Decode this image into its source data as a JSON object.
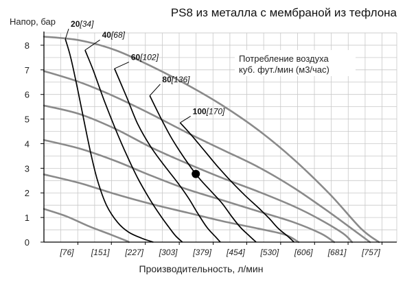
{
  "chart_data": {
    "type": "line",
    "title": "PS8 из металла с мембраной из тефлона",
    "ylabel": "Напор, бар",
    "xlabel": "Производительность, л/мин",
    "legend_text_1": "Потребление воздуха",
    "legend_text_2": "куб. фут./мин (м3/час)",
    "x_tick_labels": [
      "[76]",
      "[151]",
      "[227]",
      "[303]",
      "[379]",
      "[454]",
      "[530]",
      "[606]",
      "[681]",
      "[757]"
    ],
    "x_ticks": [
      76,
      151,
      227,
      303,
      379,
      454,
      530,
      606,
      681,
      757
    ],
    "y_ticks": [
      0,
      1,
      2,
      3,
      4,
      5,
      6,
      7,
      8
    ],
    "y_tick_labels": [
      "0",
      "1",
      "2",
      "3",
      "4",
      "5",
      "6",
      "7",
      "8"
    ],
    "xlim": [
      0,
      790
    ],
    "ylim": [
      0,
      8.5
    ],
    "grid": true,
    "operating_point": {
      "x": 340,
      "y": 2.77
    },
    "air_curves": [
      {
        "label_main": "20",
        "label_sub": "[34]",
        "label_at": {
          "x": 60,
          "y": 8.75
        },
        "points": [
          [
            48,
            8.25
          ],
          [
            60,
            7.5
          ],
          [
            75,
            6.25
          ],
          [
            90,
            4.9
          ],
          [
            105,
            3.6
          ],
          [
            120,
            2.5
          ],
          [
            140,
            1.5
          ],
          [
            165,
            0.8
          ],
          [
            190,
            0.4
          ],
          [
            220,
            0.15
          ],
          [
            245,
            0.0
          ]
        ]
      },
      {
        "label_main": "40",
        "label_sub": "[68]",
        "label_at": {
          "x": 130,
          "y": 8.3
        },
        "points": [
          [
            92,
            7.8
          ],
          [
            110,
            7.0
          ],
          [
            135,
            5.75
          ],
          [
            160,
            4.6
          ],
          [
            185,
            3.55
          ],
          [
            210,
            2.6
          ],
          [
            235,
            1.8
          ],
          [
            260,
            1.1
          ],
          [
            280,
            0.6
          ],
          [
            295,
            0.25
          ],
          [
            310,
            0.0
          ]
        ]
      },
      {
        "label_main": "60",
        "label_sub": "[102]",
        "label_at": {
          "x": 195,
          "y": 7.4
        },
        "points": [
          [
            158,
            7.05
          ],
          [
            185,
            5.9
          ],
          [
            210,
            4.8
          ],
          [
            240,
            3.85
          ],
          [
            270,
            3.1
          ],
          [
            300,
            2.4
          ],
          [
            325,
            1.75
          ],
          [
            345,
            1.15
          ],
          [
            365,
            0.6
          ],
          [
            385,
            0.2
          ],
          [
            395,
            0.0
          ]
        ]
      },
      {
        "label_main": "80",
        "label_sub": "[136]",
        "label_at": {
          "x": 265,
          "y": 6.5
        },
        "points": [
          [
            237,
            5.95
          ],
          [
            260,
            5.1
          ],
          [
            285,
            4.25
          ],
          [
            315,
            3.4
          ],
          [
            345,
            2.65
          ],
          [
            375,
            2.05
          ],
          [
            400,
            1.55
          ],
          [
            420,
            1.05
          ],
          [
            440,
            0.6
          ],
          [
            460,
            0.25
          ],
          [
            475,
            0.0
          ]
        ]
      },
      {
        "label_main": "100",
        "label_sub": "[170]",
        "label_at": {
          "x": 333,
          "y": 5.2
        },
        "points": [
          [
            305,
            4.85
          ],
          [
            330,
            4.35
          ],
          [
            360,
            3.7
          ],
          [
            390,
            3.05
          ],
          [
            420,
            2.45
          ],
          [
            450,
            1.9
          ],
          [
            480,
            1.4
          ],
          [
            505,
            0.95
          ],
          [
            525,
            0.55
          ],
          [
            545,
            0.25
          ],
          [
            560,
            0.0
          ]
        ]
      }
    ],
    "performance_curves": [
      {
        "points": [
          [
            0,
            8.35
          ],
          [
            80,
            8.2
          ],
          [
            160,
            7.8
          ],
          [
            240,
            7.15
          ],
          [
            320,
            6.4
          ],
          [
            400,
            5.55
          ],
          [
            480,
            4.55
          ],
          [
            560,
            3.35
          ],
          [
            640,
            1.95
          ],
          [
            710,
            0.55
          ],
          [
            750,
            0.0
          ]
        ]
      },
      {
        "points": [
          [
            0,
            6.95
          ],
          [
            80,
            6.5
          ],
          [
            160,
            5.9
          ],
          [
            240,
            5.2
          ],
          [
            320,
            4.45
          ],
          [
            400,
            3.75
          ],
          [
            480,
            3.05
          ],
          [
            560,
            2.2
          ],
          [
            640,
            1.2
          ],
          [
            700,
            0.4
          ],
          [
            730,
            0.0
          ]
        ]
      },
      {
        "points": [
          [
            0,
            5.55
          ],
          [
            80,
            5.2
          ],
          [
            160,
            4.6
          ],
          [
            240,
            3.85
          ],
          [
            320,
            3.2
          ],
          [
            400,
            2.6
          ],
          [
            480,
            2.05
          ],
          [
            560,
            1.45
          ],
          [
            620,
            0.9
          ],
          [
            670,
            0.35
          ],
          [
            690,
            0.0
          ]
        ]
      },
      {
        "points": [
          [
            0,
            4.15
          ],
          [
            80,
            3.8
          ],
          [
            160,
            3.3
          ],
          [
            240,
            2.7
          ],
          [
            320,
            2.15
          ],
          [
            400,
            1.7
          ],
          [
            480,
            1.25
          ],
          [
            560,
            0.8
          ],
          [
            620,
            0.35
          ],
          [
            650,
            0.0
          ]
        ]
      },
      {
        "points": [
          [
            0,
            2.75
          ],
          [
            80,
            2.4
          ],
          [
            160,
            1.95
          ],
          [
            240,
            1.55
          ],
          [
            320,
            1.2
          ],
          [
            400,
            0.85
          ],
          [
            480,
            0.55
          ],
          [
            540,
            0.3
          ],
          [
            570,
            0.0
          ]
        ]
      },
      {
        "points": [
          [
            0,
            1.35
          ],
          [
            50,
            1.05
          ],
          [
            100,
            0.65
          ],
          [
            150,
            0.3
          ],
          [
            185,
            0.05
          ],
          [
            190,
            0.0
          ]
        ]
      }
    ]
  }
}
